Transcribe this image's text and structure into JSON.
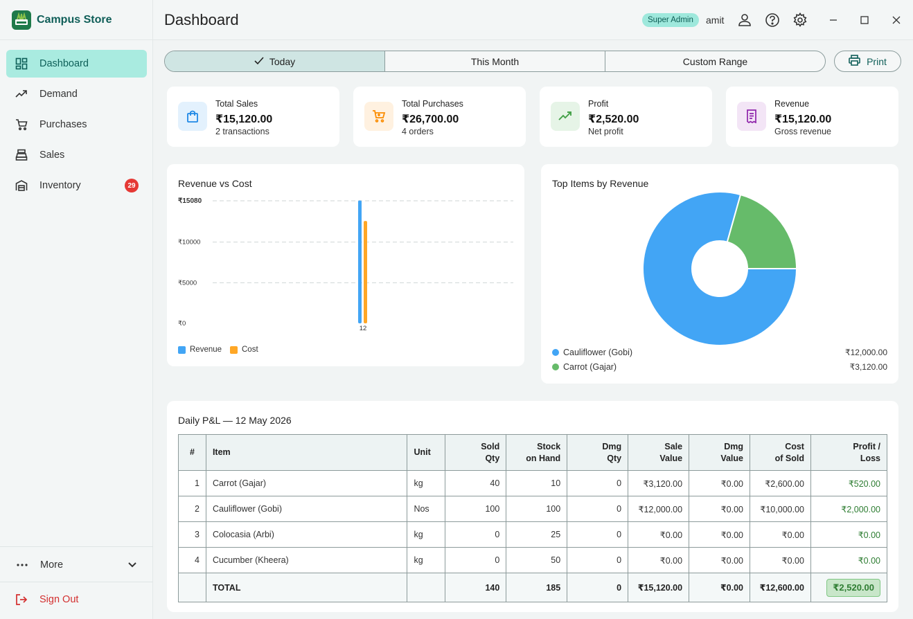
{
  "app": {
    "title": "Campus Store"
  },
  "sidebar": {
    "items": [
      {
        "label": "Dashboard",
        "icon": "dashboard-icon",
        "active": true
      },
      {
        "label": "Demand",
        "icon": "trending-icon"
      },
      {
        "label": "Purchases",
        "icon": "cart-icon"
      },
      {
        "label": "Sales",
        "icon": "register-icon"
      },
      {
        "label": "Inventory",
        "icon": "warehouse-icon",
        "badge": "29"
      }
    ],
    "more_label": "More",
    "signout_label": "Sign Out"
  },
  "header": {
    "title": "Dashboard",
    "role": "Super Admin",
    "user": "amit"
  },
  "range_tabs": [
    "Today",
    "This Month",
    "Custom Range"
  ],
  "print_label": "Print",
  "stats": [
    {
      "label": "Total Sales",
      "value": "₹15,120.00",
      "sub": "2 transactions",
      "icon": "shopping-bag-icon",
      "color": "#1e88e5",
      "bg": "#e3f1fd"
    },
    {
      "label": "Total Purchases",
      "value": "₹26,700.00",
      "sub": "4 orders",
      "icon": "cart-icon",
      "color": "#fb8c00",
      "bg": "#fff1e0"
    },
    {
      "label": "Profit",
      "value": "₹2,520.00",
      "sub": "Net profit",
      "icon": "trending-up-icon",
      "color": "#43a047",
      "bg": "#e6f4e7"
    },
    {
      "label": "Revenue",
      "value": "₹15,120.00",
      "sub": "Gross revenue",
      "icon": "receipt-icon",
      "color": "#8e24aa",
      "bg": "#f3e5f6"
    }
  ],
  "revenue_chart": {
    "title": "Revenue vs Cost",
    "chart_data": {
      "type": "bar",
      "categories": [
        "12"
      ],
      "series": [
        {
          "name": "Revenue",
          "values": [
            15120
          ],
          "color": "#42a5f5"
        },
        {
          "name": "Cost",
          "values": [
            12600
          ],
          "color": "#ffa726"
        }
      ],
      "yticks": [
        "₹0",
        "₹5000",
        "₹10000",
        "₹15080"
      ],
      "ylim": [
        0,
        15080
      ]
    }
  },
  "top_items_chart": {
    "title": "Top Items by Revenue",
    "chart_data": {
      "type": "pie",
      "labels": [
        "Cauliflower (Gobi)",
        "Carrot (Gajar)"
      ],
      "values": [
        12000,
        3120
      ],
      "value_labels": [
        "₹12,000.00",
        "₹3,120.00"
      ],
      "colors": [
        "#42a5f5",
        "#66bb6a"
      ]
    }
  },
  "pl": {
    "title": "Daily P&L — 12 May 2026",
    "headers": [
      "#",
      "Item",
      "Unit",
      "Sold\nQty",
      "Stock\non Hand",
      "Dmg\nQty",
      "Sale\nValue",
      "Dmg\nValue",
      "Cost\nof Sold",
      "Profit /\nLoss"
    ],
    "rows": [
      [
        "1",
        "Carrot (Gajar)",
        "kg",
        "40",
        "10",
        "0",
        "₹3,120.00",
        "₹0.00",
        "₹2,600.00",
        "₹520.00"
      ],
      [
        "2",
        "Cauliflower (Gobi)",
        "Nos",
        "100",
        "100",
        "0",
        "₹12,000.00",
        "₹0.00",
        "₹10,000.00",
        "₹2,000.00"
      ],
      [
        "3",
        "Colocasia (Arbi)",
        "kg",
        "0",
        "25",
        "0",
        "₹0.00",
        "₹0.00",
        "₹0.00",
        "₹0.00"
      ],
      [
        "4",
        "Cucumber (Kheera)",
        "kg",
        "0",
        "50",
        "0",
        "₹0.00",
        "₹0.00",
        "₹0.00",
        "₹0.00"
      ]
    ],
    "total": [
      "",
      "TOTAL",
      "",
      "140",
      "185",
      "0",
      "₹15,120.00",
      "₹0.00",
      "₹12,600.00",
      "₹2,520.00"
    ]
  }
}
